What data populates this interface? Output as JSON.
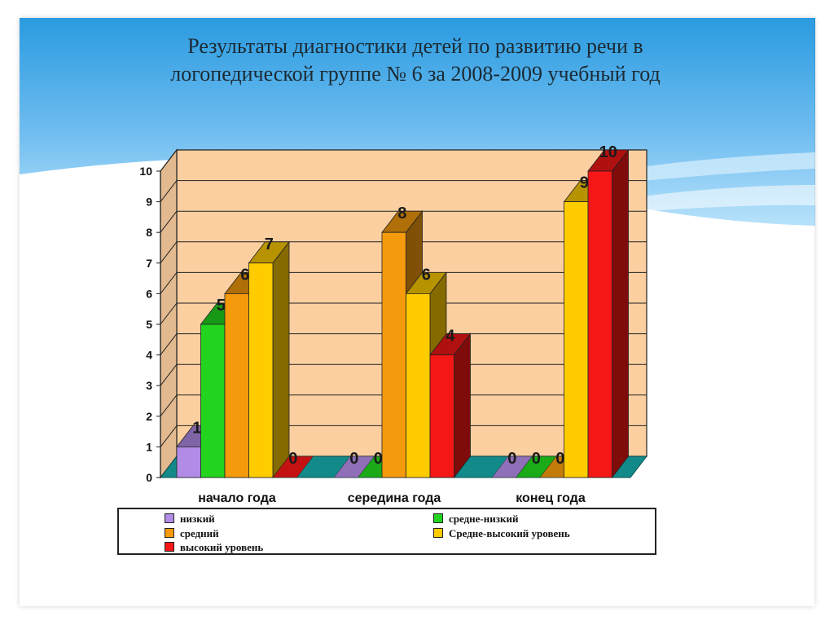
{
  "slide": {
    "title_line1": "Результаты диагностики детей  по  развитию  речи  в",
    "title_line2": "логопедической  группе № 6  за 2008-2009 учебный  год",
    "banner_color_top": "#2a9be0",
    "banner_color_bottom": "#9bd4f5"
  },
  "chart_data": {
    "type": "bar",
    "style": "3d-clustered",
    "categories": [
      "начало  года",
      "середина  года",
      "конец  года"
    ],
    "series": [
      {
        "name": "низкий",
        "color": "#b18be6",
        "values": [
          1,
          0,
          0
        ]
      },
      {
        "name": "средне-низкий",
        "color": "#22d41e",
        "values": [
          5,
          0,
          0
        ]
      },
      {
        "name": "средний",
        "color": "#f59a0c",
        "values": [
          6,
          8,
          0
        ]
      },
      {
        "name": "Средне-высокий уровень",
        "color": "#ffcc00",
        "values": [
          7,
          6,
          9
        ]
      },
      {
        "name": "высокий уровень",
        "color": "#f51616",
        "values": [
          0,
          4,
          10
        ]
      }
    ],
    "data_labels": [
      [
        "1",
        "5",
        "6",
        "7",
        "0"
      ],
      [
        "0",
        "0",
        "8",
        "6",
        "4"
      ],
      [
        "0",
        "0",
        "0",
        "9",
        "10"
      ]
    ],
    "y_ticks": [
      "0",
      "1",
      "2",
      "3",
      "4",
      "5",
      "6",
      "7",
      "8",
      "9",
      "10"
    ],
    "ylim": [
      0,
      10
    ],
    "grid": true,
    "plot_color": "#fccfa0",
    "floor_color": "#138a8a",
    "legend_position": "bottom"
  }
}
